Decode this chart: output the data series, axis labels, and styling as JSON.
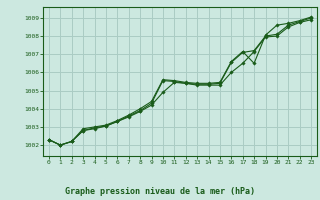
{
  "title": "Graphe pression niveau de la mer (hPa)",
  "bg_color": "#cce8e0",
  "grid_color": "#aaccc4",
  "line_color": "#1a5c1a",
  "marker_color": "#1a5c1a",
  "xlim": [
    -0.5,
    23.5
  ],
  "ylim": [
    1001.4,
    1009.6
  ],
  "xticks": [
    0,
    1,
    2,
    3,
    4,
    5,
    6,
    7,
    8,
    9,
    10,
    11,
    12,
    13,
    14,
    15,
    16,
    17,
    18,
    19,
    20,
    21,
    22,
    23
  ],
  "yticks": [
    1002,
    1003,
    1004,
    1005,
    1006,
    1007,
    1008,
    1009
  ],
  "series": [
    [
      1002.3,
      1002.0,
      1002.2,
      1002.8,
      1002.9,
      1003.05,
      1003.3,
      1003.6,
      1003.9,
      1004.3,
      1005.55,
      1005.5,
      1005.4,
      1005.35,
      1005.35,
      1005.4,
      1006.55,
      1007.1,
      1007.2,
      1008.0,
      1008.1,
      1008.6,
      1008.8,
      1009.0
    ],
    [
      1002.3,
      1002.0,
      1002.2,
      1002.8,
      1002.95,
      1003.05,
      1003.3,
      1003.55,
      1003.85,
      1004.2,
      1004.9,
      1005.45,
      1005.4,
      1005.3,
      1005.3,
      1005.3,
      1006.0,
      1006.5,
      1007.15,
      1007.95,
      1008.0,
      1008.5,
      1008.75,
      1008.9
    ],
    [
      1002.3,
      1002.0,
      1002.2,
      1002.9,
      1003.0,
      1003.1,
      1003.35,
      1003.65,
      1004.0,
      1004.4,
      1005.6,
      1005.55,
      1005.45,
      1005.4,
      1005.4,
      1005.45,
      1006.6,
      1007.15,
      1006.5,
      1008.05,
      1008.6,
      1008.7,
      1008.85,
      1009.05
    ]
  ]
}
